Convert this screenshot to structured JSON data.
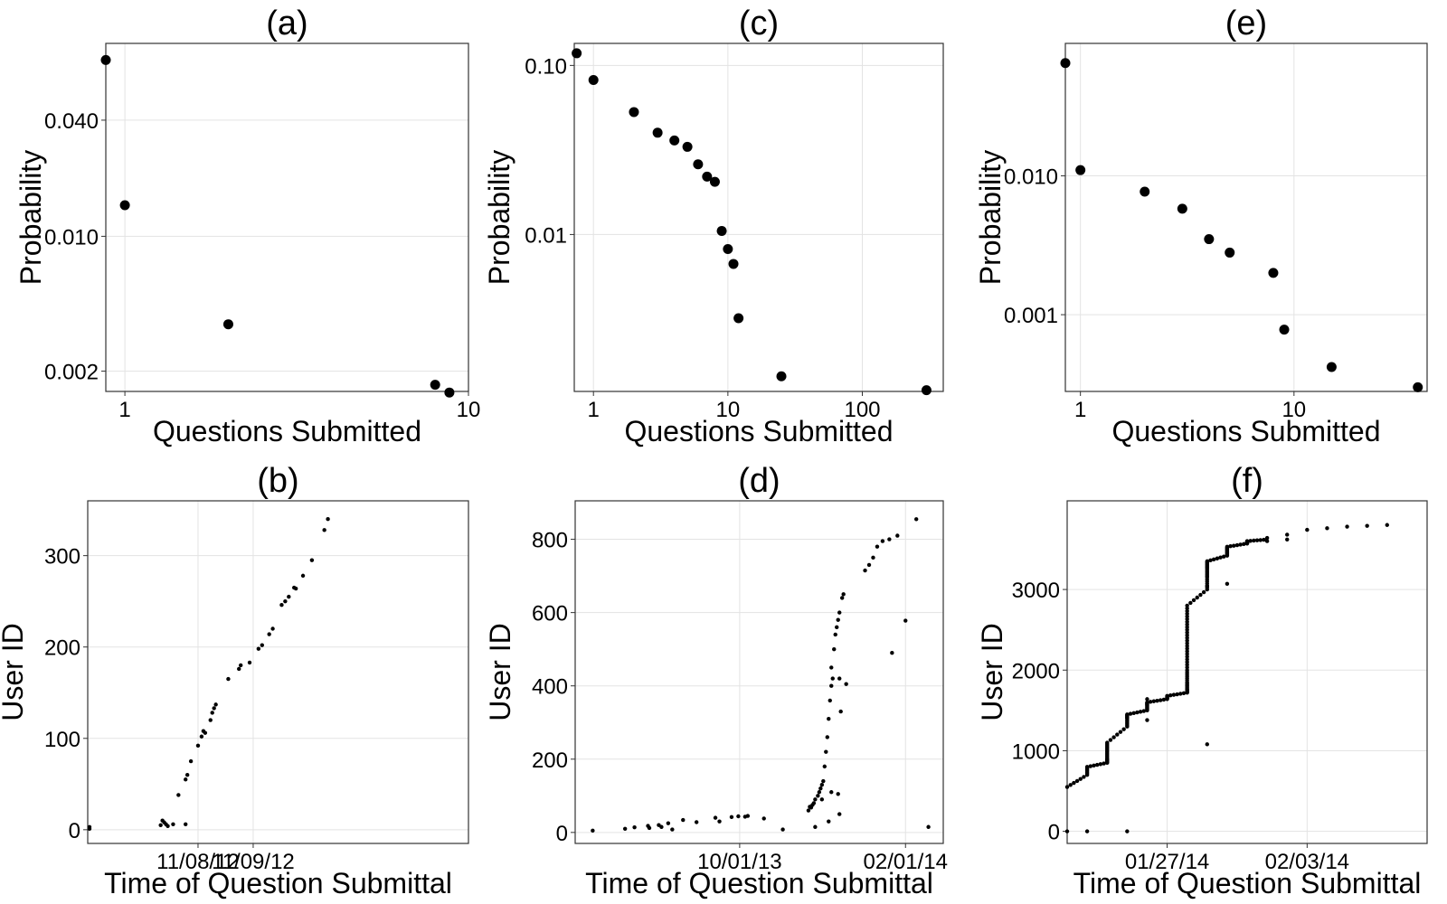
{
  "chart_data": [
    {
      "panel": "a",
      "title": "(a)",
      "type": "scatter",
      "xlabel": "Questions Submitted",
      "ylabel": "Probability",
      "xscale": "log",
      "yscale": "log",
      "xlim": [
        0.88,
        10
      ],
      "ylim": [
        0.00157,
        0.1
      ],
      "xticks": [
        {
          "v": 1,
          "label": "1"
        },
        {
          "v": 10,
          "label": "10"
        }
      ],
      "yticks": [
        {
          "v": 0.04,
          "label": "0.040"
        },
        {
          "v": 0.01,
          "label": "0.010"
        },
        {
          "v": 0.002,
          "label": "0.002"
        }
      ],
      "grid": true,
      "marker": "large",
      "points": [
        [
          0.88,
          0.082
        ],
        [
          1,
          0.0145
        ],
        [
          2,
          0.0035
        ],
        [
          8,
          0.0017
        ],
        [
          8.8,
          0.00155
        ]
      ]
    },
    {
      "panel": "b",
      "title": "(b)",
      "type": "scatter",
      "xlabel": "Time of Question Submittal",
      "ylabel": "User ID",
      "xscale": "date",
      "yscale": "linear",
      "xlim": [
        "2012-06-10",
        "2013-01-10"
      ],
      "ylim": [
        -15,
        360
      ],
      "xticks": [
        {
          "v": "2012-08-11",
          "label": "11/08/12"
        },
        {
          "v": "2012-09-11",
          "label": "11/09/12"
        }
      ],
      "yticks": [
        {
          "v": 0,
          "label": "0"
        },
        {
          "v": 100,
          "label": "100"
        },
        {
          "v": 200,
          "label": "200"
        },
        {
          "v": 300,
          "label": "300"
        }
      ],
      "grid": true,
      "marker": "small",
      "points": [
        [
          "2012-06-11",
          3
        ],
        [
          "2012-06-11",
          1
        ],
        [
          "2012-07-21",
          5
        ],
        [
          "2012-07-22",
          10
        ],
        [
          "2012-07-23",
          8
        ],
        [
          "2012-07-24",
          6
        ],
        [
          "2012-07-25",
          4
        ],
        [
          "2012-07-28",
          6
        ],
        [
          "2012-08-04",
          6
        ],
        [
          "2012-07-31",
          38
        ],
        [
          "2012-08-04",
          55
        ],
        [
          "2012-08-05",
          60
        ],
        [
          "2012-08-07",
          75
        ],
        [
          "2012-08-11",
          92
        ],
        [
          "2012-08-13",
          102
        ],
        [
          "2012-08-14",
          108
        ],
        [
          "2012-08-15",
          106
        ],
        [
          "2012-08-18",
          120
        ],
        [
          "2012-08-19",
          128
        ],
        [
          "2012-08-20",
          133
        ],
        [
          "2012-08-21",
          137
        ],
        [
          "2012-08-28",
          165
        ],
        [
          "2012-09-03",
          176
        ],
        [
          "2012-09-04",
          180
        ],
        [
          "2012-09-09",
          183
        ],
        [
          "2012-09-14",
          198
        ],
        [
          "2012-09-16",
          202
        ],
        [
          "2012-09-20",
          214
        ],
        [
          "2012-09-22",
          220
        ],
        [
          "2012-09-27",
          246
        ],
        [
          "2012-09-29",
          250
        ],
        [
          "2012-10-01",
          255
        ],
        [
          "2012-10-04",
          265
        ],
        [
          "2012-10-05",
          264
        ],
        [
          "2012-10-09",
          278
        ],
        [
          "2012-10-14",
          295
        ],
        [
          "2012-10-21",
          328
        ],
        [
          "2012-10-23",
          340
        ]
      ]
    },
    {
      "panel": "c",
      "title": "(c)",
      "type": "scatter",
      "xlabel": "Questions Submitted",
      "ylabel": "Probability",
      "xscale": "log",
      "yscale": "log",
      "xlim": [
        0.72,
        400
      ],
      "ylim": [
        0.00118,
        0.135
      ],
      "xticks": [
        {
          "v": 1,
          "label": "1"
        },
        {
          "v": 10,
          "label": "10"
        },
        {
          "v": 100,
          "label": "100"
        }
      ],
      "yticks": [
        {
          "v": 0.1,
          "label": "0.10"
        },
        {
          "v": 0.01,
          "label": "0.01"
        }
      ],
      "grid": true,
      "marker": "large",
      "points": [
        [
          0.75,
          0.118
        ],
        [
          1,
          0.082
        ],
        [
          2,
          0.053
        ],
        [
          3,
          0.04
        ],
        [
          4,
          0.036
        ],
        [
          5,
          0.033
        ],
        [
          6,
          0.026
        ],
        [
          7,
          0.022
        ],
        [
          8,
          0.0205
        ],
        [
          9,
          0.0105
        ],
        [
          10,
          0.0082
        ],
        [
          11,
          0.0067
        ],
        [
          12,
          0.0032
        ],
        [
          25,
          0.00145
        ],
        [
          300,
          0.0012
        ]
      ]
    },
    {
      "panel": "d",
      "title": "(d)",
      "type": "scatter",
      "xlabel": "Time of Question Submittal",
      "ylabel": "User ID",
      "xscale": "date",
      "yscale": "linear",
      "xlim": [
        "2013-06-01",
        "2014-03-01"
      ],
      "ylim": [
        -30,
        905
      ],
      "xticks": [
        {
          "v": "2013-10-01",
          "label": "10/01/13"
        },
        {
          "v": "2014-02-01",
          "label": "02/01/14"
        }
      ],
      "yticks": [
        {
          "v": 0,
          "label": "0"
        },
        {
          "v": 200,
          "label": "200"
        },
        {
          "v": 400,
          "label": "400"
        },
        {
          "v": 600,
          "label": "600"
        },
        {
          "v": 800,
          "label": "800"
        }
      ],
      "grid": true,
      "marker": "small",
      "points": [
        [
          "2013-06-14",
          5
        ],
        [
          "2013-07-08",
          10
        ],
        [
          "2013-07-15",
          14
        ],
        [
          "2013-07-25",
          18
        ],
        [
          "2013-07-26",
          12
        ],
        [
          "2013-08-02",
          20
        ],
        [
          "2013-08-04",
          15
        ],
        [
          "2013-08-09",
          25
        ],
        [
          "2013-08-12",
          8
        ],
        [
          "2013-08-20",
          34
        ],
        [
          "2013-08-30",
          28
        ],
        [
          "2013-09-13",
          40
        ],
        [
          "2013-09-16",
          30
        ],
        [
          "2013-09-25",
          42
        ],
        [
          "2013-09-30",
          44
        ],
        [
          "2013-10-05",
          43
        ],
        [
          "2013-10-07",
          45
        ],
        [
          "2013-10-19",
          38
        ],
        [
          "2013-11-02",
          8
        ],
        [
          "2013-11-21",
          60
        ],
        [
          "2013-11-22",
          70
        ],
        [
          "2013-11-23",
          68
        ],
        [
          "2013-11-24",
          75
        ],
        [
          "2013-11-25",
          80
        ],
        [
          "2013-11-26",
          90
        ],
        [
          "2013-11-28",
          100
        ],
        [
          "2013-11-29",
          110
        ],
        [
          "2013-11-30",
          120
        ],
        [
          "2013-12-01",
          130
        ],
        [
          "2013-12-01",
          90
        ],
        [
          "2013-12-02",
          140
        ],
        [
          "2013-12-03",
          180
        ],
        [
          "2013-12-04",
          220
        ],
        [
          "2013-12-05",
          260
        ],
        [
          "2013-12-06",
          310
        ],
        [
          "2013-12-07",
          360
        ],
        [
          "2013-12-08",
          400
        ],
        [
          "2013-12-08",
          450
        ],
        [
          "2013-12-09",
          420
        ],
        [
          "2013-12-10",
          500
        ],
        [
          "2013-12-11",
          540
        ],
        [
          "2013-12-12",
          560
        ],
        [
          "2013-12-13",
          580
        ],
        [
          "2013-12-14",
          600
        ],
        [
          "2013-12-16",
          640
        ],
        [
          "2013-12-17",
          650
        ],
        [
          "2013-12-08",
          110
        ],
        [
          "2013-12-13",
          105
        ],
        [
          "2013-12-14",
          50
        ],
        [
          "2013-12-06",
          30
        ],
        [
          "2013-11-26",
          15
        ],
        [
          "2013-12-15",
          330
        ],
        [
          "2013-12-19",
          405
        ],
        [
          "2013-12-14",
          420
        ],
        [
          "2014-01-02",
          715
        ],
        [
          "2014-01-05",
          730
        ],
        [
          "2014-01-08",
          750
        ],
        [
          "2014-01-11",
          780
        ],
        [
          "2014-01-15",
          795
        ],
        [
          "2014-01-20",
          800
        ],
        [
          "2014-01-26",
          810
        ],
        [
          "2014-01-22",
          490
        ],
        [
          "2014-02-01",
          578
        ],
        [
          "2014-02-09",
          855
        ],
        [
          "2014-02-18",
          15
        ]
      ]
    },
    {
      "panel": "e",
      "title": "(e)",
      "type": "scatter",
      "xlabel": "Questions Submitted",
      "ylabel": "Probability",
      "xscale": "log",
      "yscale": "log",
      "xlim": [
        0.85,
        42
      ],
      "ylim": [
        0.00028,
        0.09
      ],
      "xticks": [
        {
          "v": 1,
          "label": "1"
        },
        {
          "v": 10,
          "label": "10"
        }
      ],
      "yticks": [
        {
          "v": 0.01,
          "label": "0.010"
        },
        {
          "v": 0.001,
          "label": "0.001"
        }
      ],
      "grid": true,
      "marker": "large",
      "points": [
        [
          0.85,
          0.065
        ],
        [
          1,
          0.011
        ],
        [
          2,
          0.0077
        ],
        [
          3,
          0.0058
        ],
        [
          4,
          0.0035
        ],
        [
          5,
          0.0028
        ],
        [
          8,
          0.002
        ],
        [
          9,
          0.00078
        ],
        [
          15,
          0.00042
        ],
        [
          38,
          0.0003
        ]
      ]
    },
    {
      "panel": "f",
      "title": "(f)",
      "type": "scatter",
      "xlabel": "Time of Question Submittal",
      "ylabel": "User ID",
      "xscale": "date",
      "yscale": "linear",
      "xlim": [
        "2014-01-22",
        "2014-02-09"
      ],
      "ylim": [
        -150,
        4100
      ],
      "xticks": [
        {
          "v": "2014-01-27",
          "label": "01/27/14"
        },
        {
          "v": "2014-02-03",
          "label": "02/03/14"
        }
      ],
      "yticks": [
        {
          "v": 0,
          "label": "0"
        },
        {
          "v": 1000,
          "label": "1000"
        },
        {
          "v": 2000,
          "label": "2000"
        },
        {
          "v": 3000,
          "label": "3000"
        }
      ],
      "grid": true,
      "marker": "small",
      "points": [
        [
          "2014-01-22",
          0
        ],
        [
          "2014-01-23",
          0
        ],
        [
          "2014-01-25",
          0
        ],
        [
          "2014-01-26",
          1640
        ],
        [
          "2014-01-26",
          1380
        ],
        [
          "2014-01-29",
          1080
        ],
        [
          "2014-01-29",
          3040
        ],
        [
          "2014-01-30",
          3070
        ],
        [
          "2014-01-31",
          3580
        ],
        [
          "2014-02-01",
          3600
        ],
        [
          "2014-02-01",
          3640
        ],
        [
          "2014-02-02",
          3680
        ],
        [
          "2014-02-02",
          3620
        ],
        [
          "2014-02-03",
          3740
        ],
        [
          "2014-02-04",
          3760
        ],
        [
          "2014-02-05",
          3780
        ],
        [
          "2014-02-06",
          3790
        ],
        [
          "2014-02-07",
          3800
        ]
      ],
      "curve": [
        [
          "2014-01-22",
          550
        ],
        [
          "2014-01-23",
          700
        ],
        [
          "2014-01-23",
          800
        ],
        [
          "2014-01-24",
          850
        ],
        [
          "2014-01-24",
          900
        ],
        [
          "2014-01-24",
          1000
        ],
        [
          "2014-01-24",
          1100
        ],
        [
          "2014-01-25",
          1300
        ],
        [
          "2014-01-25",
          1400
        ],
        [
          "2014-01-25",
          1450
        ],
        [
          "2014-01-26",
          1500
        ],
        [
          "2014-01-26",
          1560
        ],
        [
          "2014-01-26",
          1600
        ],
        [
          "2014-01-27",
          1640
        ],
        [
          "2014-01-27",
          1680
        ],
        [
          "2014-01-28",
          1720
        ],
        [
          "2014-01-28",
          1760
        ],
        [
          "2014-01-28",
          1850
        ],
        [
          "2014-01-28",
          2000
        ],
        [
          "2014-01-28",
          2200
        ],
        [
          "2014-01-28",
          2400
        ],
        [
          "2014-01-28",
          2600
        ],
        [
          "2014-01-28",
          2800
        ],
        [
          "2014-01-29",
          3000
        ],
        [
          "2014-01-29",
          3150
        ],
        [
          "2014-01-29",
          3260
        ],
        [
          "2014-01-29",
          3350
        ],
        [
          "2014-01-30",
          3420
        ],
        [
          "2014-01-30",
          3480
        ],
        [
          "2014-01-30",
          3530
        ],
        [
          "2014-01-31",
          3570
        ],
        [
          "2014-01-31",
          3600
        ],
        [
          "2014-02-01",
          3620
        ]
      ]
    }
  ]
}
